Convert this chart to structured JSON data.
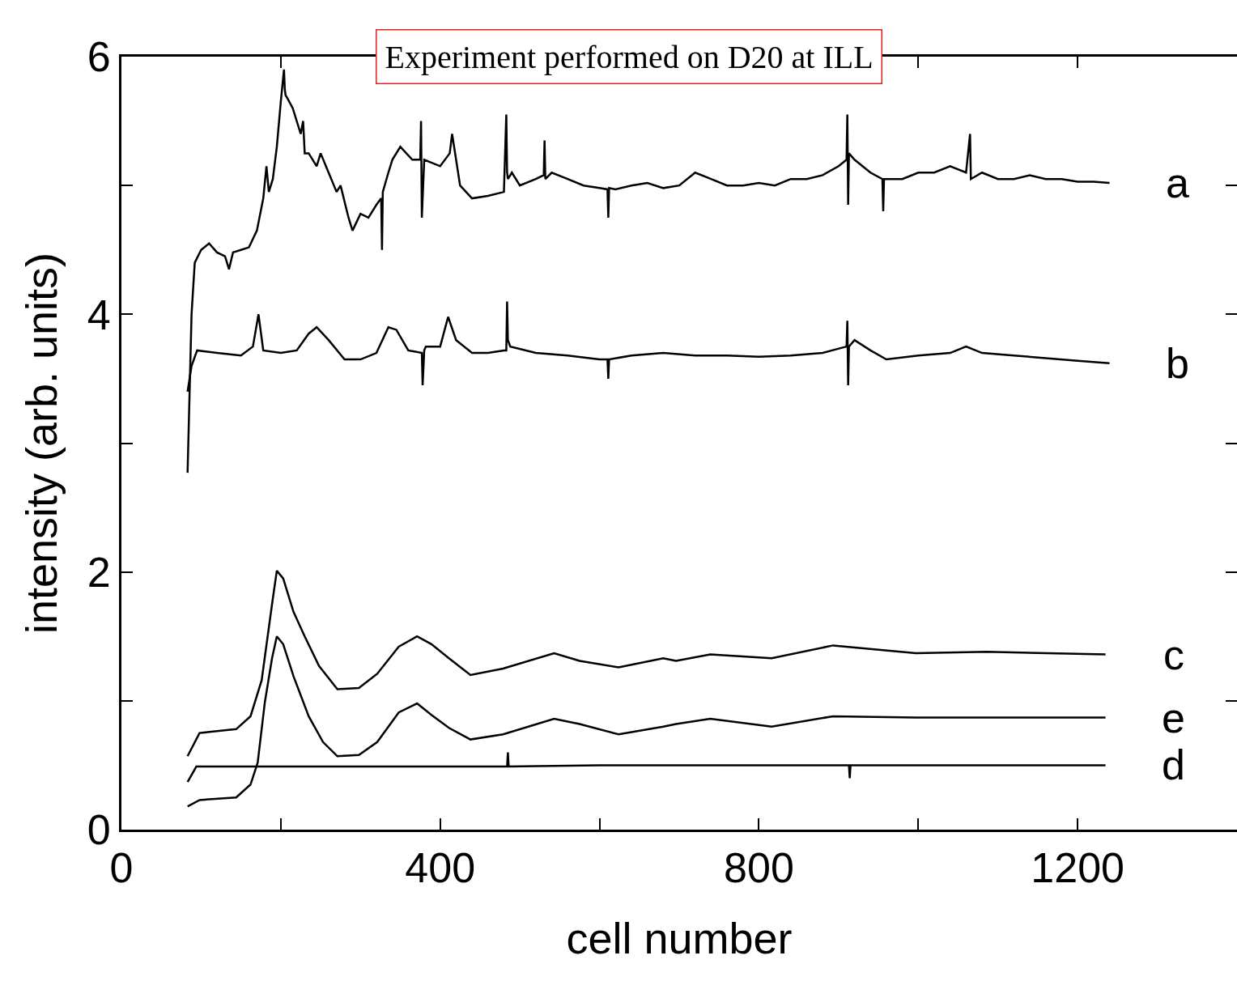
{
  "chart_data": {
    "type": "line",
    "title": "Experiment performed on D20 at ILL",
    "xlabel": "cell number",
    "ylabel": "intensity (arb. units)",
    "xlim": [
      0,
      1400
    ],
    "xticks": [
      0,
      {
        "value": 200,
        "label": null
      },
      400,
      {
        "value": 600,
        "label": null
      },
      800,
      {
        "value": 1000,
        "label": null
      },
      1200
    ],
    "ylim": [
      0,
      6
    ],
    "yticks": [
      0,
      {
        "value": 1,
        "label": null
      },
      2,
      {
        "value": 3,
        "label": null
      },
      4,
      {
        "value": 5,
        "label": null
      },
      6
    ],
    "grid": false,
    "legend": "right",
    "marker": "none",
    "line_style": "solid",
    "series": [
      {
        "name": "a",
        "color": "#000000",
        "x": [
          83,
          88,
          92,
          100,
          110,
          120,
          130,
          135,
          140,
          150,
          160,
          170,
          178,
          182,
          185,
          190,
          195,
          200,
          204,
          205,
          206,
          208,
          215,
          225,
          228,
          230,
          235,
          245,
          250,
          260,
          270,
          275,
          285,
          290,
          300,
          310,
          320,
          326,
          327,
          328,
          335,
          340,
          350,
          365,
          375,
          376,
          377,
          380,
          400,
          412,
          415,
          425,
          440,
          460,
          480,
          483,
          484,
          485,
          490,
          500,
          520,
          530,
          531,
          532,
          540,
          560,
          580,
          600,
          610,
          611,
          612,
          620,
          640,
          660,
          680,
          700,
          720,
          740,
          760,
          780,
          800,
          820,
          840,
          860,
          880,
          900,
          910,
          911,
          912,
          913,
          920,
          940,
          955,
          956,
          957,
          960,
          980,
          1000,
          1020,
          1040,
          1060,
          1065,
          1066,
          1080,
          1100,
          1120,
          1140,
          1160,
          1180,
          1200,
          1220,
          1240
        ],
        "values": [
          2.77,
          4.0,
          4.4,
          4.5,
          4.55,
          4.48,
          4.45,
          4.35,
          4.48,
          4.5,
          4.52,
          4.65,
          4.9,
          5.15,
          4.95,
          5.05,
          5.3,
          5.65,
          5.9,
          5.75,
          5.7,
          5.68,
          5.6,
          5.4,
          5.5,
          5.25,
          5.25,
          5.15,
          5.25,
          5.1,
          4.95,
          5.0,
          4.75,
          4.65,
          4.78,
          4.75,
          4.85,
          4.9,
          4.5,
          4.95,
          5.1,
          5.2,
          5.3,
          5.2,
          5.2,
          5.5,
          4.75,
          5.2,
          5.15,
          5.25,
          5.4,
          5.0,
          4.9,
          4.92,
          4.95,
          5.55,
          5.1,
          5.05,
          5.1,
          5.0,
          5.05,
          5.08,
          5.35,
          5.05,
          5.1,
          5.05,
          5.0,
          4.98,
          4.97,
          4.75,
          4.98,
          4.97,
          5.0,
          5.02,
          4.98,
          5.0,
          5.1,
          5.05,
          5.0,
          5.0,
          5.02,
          5.0,
          5.05,
          5.05,
          5.08,
          5.15,
          5.2,
          5.55,
          4.85,
          5.25,
          5.2,
          5.1,
          5.05,
          4.8,
          5.05,
          5.05,
          5.05,
          5.1,
          5.1,
          5.15,
          5.1,
          5.4,
          5.05,
          5.1,
          5.05,
          5.05,
          5.08,
          5.05,
          5.05,
          5.03,
          5.03,
          5.02
        ]
      },
      {
        "name": "b",
        "color": "#000000",
        "x": [
          83,
          88,
          95,
          120,
          150,
          165,
          172,
          178,
          200,
          220,
          235,
          245,
          260,
          280,
          300,
          320,
          335,
          345,
          360,
          377,
          378,
          380,
          382,
          400,
          410,
          420,
          440,
          460,
          480,
          483,
          484,
          485,
          488,
          520,
          560,
          600,
          610,
          611,
          612,
          640,
          680,
          720,
          760,
          800,
          840,
          880,
          910,
          911,
          912,
          913,
          920,
          940,
          960,
          1000,
          1040,
          1060,
          1080,
          1120,
          1160,
          1200,
          1240
        ],
        "values": [
          3.4,
          3.6,
          3.72,
          3.7,
          3.68,
          3.75,
          4.0,
          3.72,
          3.7,
          3.72,
          3.85,
          3.9,
          3.8,
          3.65,
          3.65,
          3.7,
          3.9,
          3.88,
          3.72,
          3.7,
          3.45,
          3.72,
          3.75,
          3.75,
          3.98,
          3.8,
          3.7,
          3.7,
          3.72,
          3.72,
          4.1,
          3.8,
          3.75,
          3.7,
          3.68,
          3.65,
          3.65,
          3.5,
          3.65,
          3.68,
          3.7,
          3.68,
          3.68,
          3.67,
          3.68,
          3.7,
          3.75,
          3.95,
          3.45,
          3.75,
          3.8,
          3.72,
          3.65,
          3.68,
          3.7,
          3.75,
          3.7,
          3.68,
          3.66,
          3.64,
          3.62
        ]
      },
      {
        "name": "c",
        "color": "#000000",
        "x": [
          83,
          98,
          144,
          162,
          176,
          189,
          195,
          203,
          216,
          230,
          248,
          271,
          298,
          321,
          348,
          371,
          389,
          411,
          438,
          479,
          543,
          575,
          624,
          680,
          696,
          739,
          816,
          893,
          997,
          1086,
          1235
        ],
        "values": [
          0.57,
          0.75,
          0.78,
          0.88,
          1.16,
          1.75,
          2.01,
          1.95,
          1.69,
          1.5,
          1.27,
          1.09,
          1.1,
          1.21,
          1.42,
          1.5,
          1.44,
          1.33,
          1.2,
          1.25,
          1.37,
          1.31,
          1.26,
          1.33,
          1.31,
          1.36,
          1.33,
          1.43,
          1.37,
          1.38,
          1.36
        ]
      },
      {
        "name": "e",
        "color": "#000000",
        "x": [
          83,
          98,
          144,
          162,
          171,
          180,
          189,
          195,
          203,
          216,
          235,
          253,
          271,
          298,
          321,
          348,
          371,
          389,
          411,
          438,
          479,
          543,
          575,
          624,
          680,
          696,
          739,
          816,
          893,
          997,
          1235
        ],
        "values": [
          0.18,
          0.23,
          0.25,
          0.35,
          0.52,
          0.99,
          1.33,
          1.5,
          1.44,
          1.19,
          0.88,
          0.68,
          0.57,
          0.58,
          0.68,
          0.91,
          0.98,
          0.89,
          0.79,
          0.7,
          0.74,
          0.86,
          0.82,
          0.74,
          0.8,
          0.82,
          0.86,
          0.8,
          0.88,
          0.87,
          0.87
        ]
      },
      {
        "name": "d",
        "color": "#000000",
        "x": [
          83,
          94,
          150,
          300,
          484,
          485,
          486,
          600,
          800,
          913,
          914,
          915,
          1000,
          1235
        ],
        "values": [
          0.37,
          0.49,
          0.49,
          0.49,
          0.49,
          0.6,
          0.49,
          0.5,
          0.5,
          0.5,
          0.4,
          0.5,
          0.5,
          0.5
        ]
      }
    ]
  }
}
